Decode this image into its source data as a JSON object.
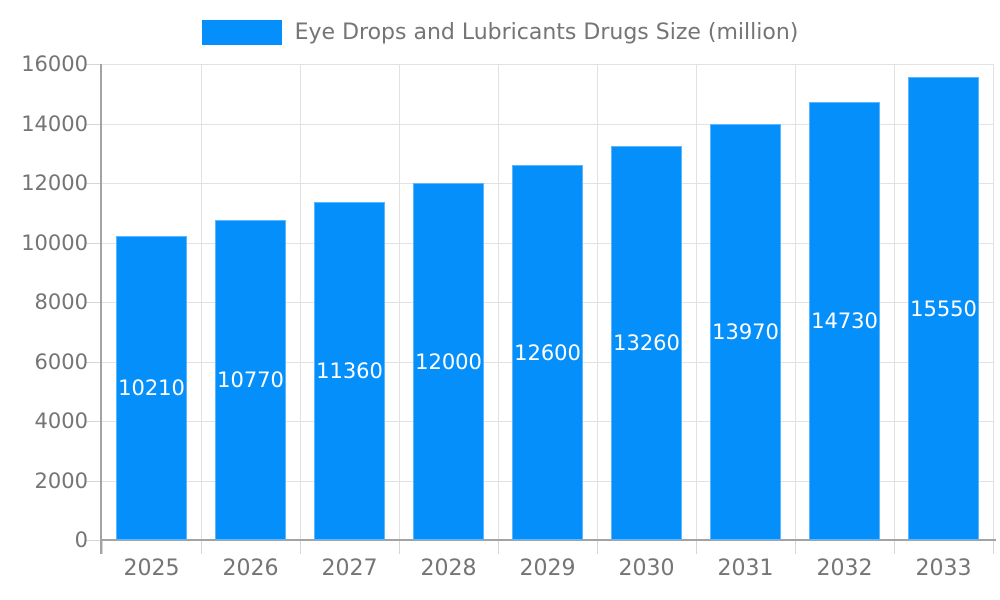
{
  "chart_data": {
    "type": "bar",
    "title": "Eye Drops and Lubricants Drugs Size (million)",
    "categories": [
      "2025",
      "2026",
      "2027",
      "2028",
      "2029",
      "2030",
      "2031",
      "2032",
      "2033"
    ],
    "values": [
      10210,
      10770,
      11360,
      12000,
      12600,
      13260,
      13970,
      14730,
      15550
    ],
    "xlabel": "",
    "ylabel": "",
    "ylim": [
      0,
      16000
    ],
    "ytick_step": 2000,
    "ytick_labels": [
      "0",
      "2000",
      "4000",
      "6000",
      "8000",
      "10000",
      "12000",
      "14000",
      "16000"
    ],
    "grid": true,
    "legend_position": "top",
    "legend_entries": [
      "Eye Drops and Lubricants Drugs Size (million)"
    ],
    "data_labels": "inside-center-white",
    "colors": {
      "bar": "#058FFB",
      "bar_label_text": "#ffffff",
      "axis_text": "#757575",
      "legend_text": "#757575",
      "gridline": "#e2e2e2",
      "tick": "#d6d6d6",
      "axis_line": "#a3a3a3",
      "background": "#ffffff"
    }
  }
}
